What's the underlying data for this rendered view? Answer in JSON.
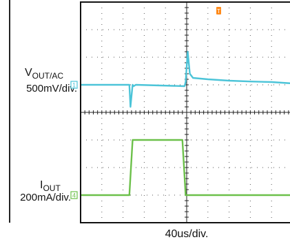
{
  "chart_data": {
    "type": "line",
    "title": "",
    "xlabel": "40us/div.",
    "divisions": {
      "x": 10,
      "y": 8
    },
    "trigger_marker": "T",
    "channels": [
      {
        "id": "ch1",
        "marker": "1",
        "name_main": "V",
        "name_sub": "OUT/AC",
        "scale": "500mV/div.",
        "color": "#4cc4d8",
        "time_div": [
          0,
          2.3,
          2.35,
          2.45,
          2.5,
          2.6,
          4.9,
          4.95,
          5.05,
          5.15,
          5.3,
          6,
          7,
          8,
          9,
          10
        ],
        "level_div": [
          5.0,
          5.0,
          4.2,
          5.0,
          4.95,
          5.0,
          4.95,
          5.1,
          6.2,
          5.4,
          5.25,
          5.2,
          5.15,
          5.12,
          5.1,
          5.05
        ]
      },
      {
        "id": "ch4",
        "marker": "4",
        "name_main": "I",
        "name_sub": "OUT",
        "scale": "200mA/div.",
        "color": "#6cc04a",
        "time_div": [
          0,
          2.3,
          2.45,
          4.8,
          4.95,
          10
        ],
        "level_div": [
          1.0,
          1.0,
          3.0,
          3.0,
          1.0,
          1.0
        ]
      }
    ]
  }
}
